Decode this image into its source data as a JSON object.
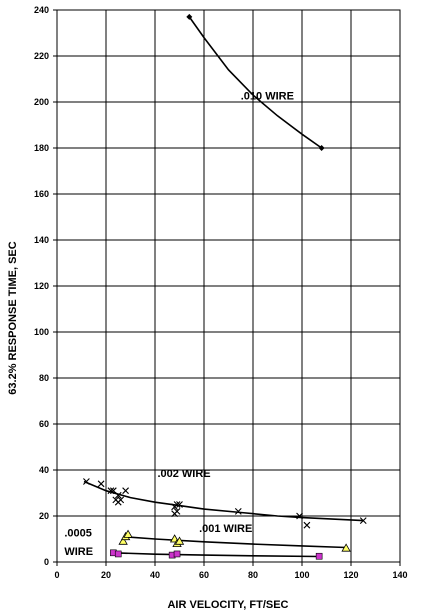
{
  "chart_data": {
    "type": "scatter",
    "title": "",
    "xlabel": "AIR VELOCITY, FT/SEC",
    "ylabel": "63.2% RESPONSE TIME, SEC",
    "xlim": [
      0,
      140
    ],
    "ylim": [
      0,
      240
    ],
    "x_ticks": [
      0,
      20,
      40,
      60,
      80,
      100,
      120,
      140
    ],
    "y_ticks": [
      0,
      20,
      40,
      60,
      80,
      100,
      120,
      140,
      160,
      180,
      200,
      220,
      240
    ],
    "grid": true,
    "legend": "none",
    "annotations": [
      {
        "text": ".010 WIRE",
        "x": 75,
        "y": 201
      },
      {
        "text": ".002 WIRE",
        "x": 41,
        "y": 37
      },
      {
        "text": ".001 WIRE",
        "x": 58,
        "y": 13
      },
      {
        "text": ".0005",
        "x": 3,
        "y": 11
      },
      {
        "text": "WIRE",
        "x": 3,
        "y": 3
      }
    ],
    "series": [
      {
        "label_text": ".010 WIRE",
        "marker": "diamond",
        "color": "#000000",
        "points": [
          [
            54,
            237
          ],
          [
            108,
            180
          ]
        ],
        "fit": [
          [
            54,
            237
          ],
          [
            60,
            228
          ],
          [
            70,
            214
          ],
          [
            80,
            203
          ],
          [
            90,
            194
          ],
          [
            100,
            186
          ],
          [
            108,
            180
          ]
        ]
      },
      {
        "label_text": ".002 WIRE",
        "marker": "x",
        "color": "#000000",
        "points": [
          [
            12,
            35
          ],
          [
            18,
            34
          ],
          [
            22,
            31
          ],
          [
            23,
            31
          ],
          [
            24,
            27
          ],
          [
            25,
            29
          ],
          [
            25,
            26
          ],
          [
            26,
            27
          ],
          [
            28,
            31
          ],
          [
            48,
            21
          ],
          [
            48,
            24
          ],
          [
            49,
            22
          ],
          [
            49,
            25
          ],
          [
            50,
            25
          ],
          [
            74,
            22
          ],
          [
            99,
            20
          ],
          [
            102,
            16
          ],
          [
            125,
            18
          ]
        ],
        "fit": [
          [
            11,
            35
          ],
          [
            20,
            31
          ],
          [
            30,
            28
          ],
          [
            40,
            26
          ],
          [
            50,
            24.5
          ],
          [
            60,
            23
          ],
          [
            75,
            21.5
          ],
          [
            90,
            20
          ],
          [
            100,
            19.3
          ],
          [
            125,
            18
          ]
        ]
      },
      {
        "label_text": ".001 WIRE",
        "marker": "triangle",
        "color": "#ffff66",
        "points": [
          [
            27,
            9
          ],
          [
            28,
            11
          ],
          [
            29,
            12
          ],
          [
            48,
            10
          ],
          [
            49,
            8
          ],
          [
            50,
            9
          ],
          [
            118,
            6
          ]
        ],
        "fit": [
          [
            27,
            11
          ],
          [
            40,
            10
          ],
          [
            60,
            8.8
          ],
          [
            80,
            7.8
          ],
          [
            100,
            7
          ],
          [
            118,
            6.3
          ]
        ]
      },
      {
        "label_text": ".0005 WIRE",
        "marker": "square",
        "color": "#cc33cc",
        "points": [
          [
            23,
            4
          ],
          [
            25,
            3.5
          ],
          [
            47,
            3
          ],
          [
            49,
            3.5
          ],
          [
            107,
            2.5
          ]
        ],
        "fit": [
          [
            23,
            4
          ],
          [
            40,
            3.4
          ],
          [
            60,
            3
          ],
          [
            80,
            2.7
          ],
          [
            107,
            2.4
          ]
        ]
      }
    ]
  }
}
